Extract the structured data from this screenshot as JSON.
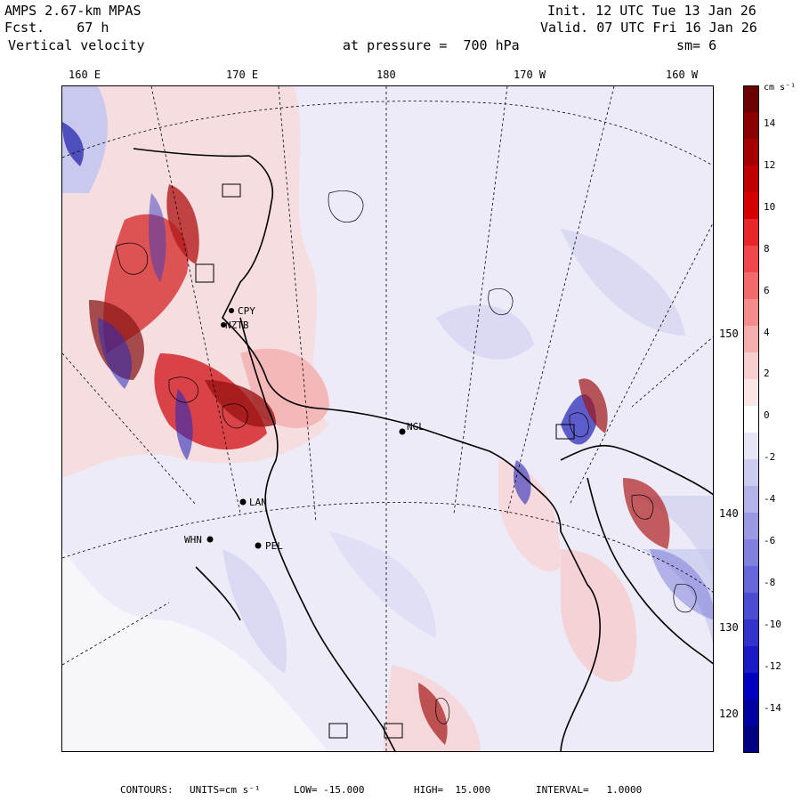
{
  "header": {
    "model": "AMPS 2.67-km MPAS",
    "forecast": "Fcst.    67 h",
    "field": "Vertical velocity",
    "init": "Init. 12 UTC Tue 13 Jan 26",
    "valid": "Valid. 07 UTC Fri 16 Jan 26",
    "pressure": "at pressure =  700 hPa",
    "smoothing": "sm= 6"
  },
  "longitude_labels": [
    "160 E",
    "170 E",
    "180",
    "170 W",
    "160 W"
  ],
  "latitude_labels": [
    "150 W",
    "140 W",
    "130 W",
    "120 W"
  ],
  "stations": [
    "CPY",
    "NZTB",
    "NGL",
    "LAN",
    "WHN",
    "PEL"
  ],
  "colorbar": {
    "units_label": "cm s⁻¹",
    "tick_labels": [
      "14",
      "12",
      "10",
      "8",
      "6",
      "4",
      "2",
      "0",
      "-2",
      "-4",
      "-6",
      "-8",
      "-10",
      "-12",
      "-14"
    ],
    "colors": [
      "#6b0000",
      "#8b0000",
      "#a50000",
      "#be0000",
      "#d40000",
      "#e8262a",
      "#f04848",
      "#f26a6a",
      "#f48c8c",
      "#f6adad",
      "#f8cfcf",
      "#fbe6e6",
      "#ffffff",
      "#e6e6f6",
      "#ccccf0",
      "#b3b3ea",
      "#9999e4",
      "#8080de",
      "#6666d8",
      "#4c4cd2",
      "#3333cc",
      "#1a1ac6",
      "#0000c0",
      "#0000a0",
      "#000080"
    ]
  },
  "footer": {
    "contours_label": "CONTOURS:",
    "units": "UNITS=cm s⁻¹",
    "low": "LOW= -15.000",
    "high": "HIGH=  15.000",
    "interval": "INTERVAL=   1.0000"
  }
}
